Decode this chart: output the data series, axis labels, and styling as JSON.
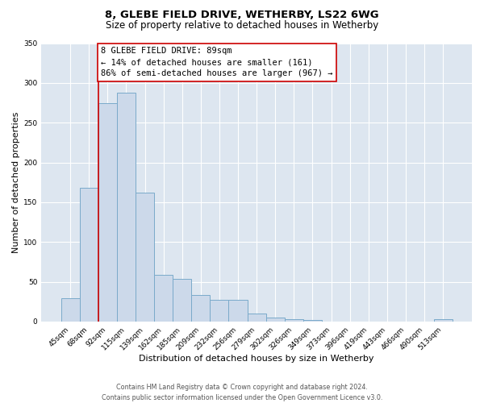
{
  "title": "8, GLEBE FIELD DRIVE, WETHERBY, LS22 6WG",
  "subtitle": "Size of property relative to detached houses in Wetherby",
  "xlabel": "Distribution of detached houses by size in Wetherby",
  "ylabel": "Number of detached properties",
  "bar_labels": [
    "45sqm",
    "68sqm",
    "92sqm",
    "115sqm",
    "139sqm",
    "162sqm",
    "185sqm",
    "209sqm",
    "232sqm",
    "256sqm",
    "279sqm",
    "302sqm",
    "326sqm",
    "349sqm",
    "373sqm",
    "396sqm",
    "419sqm",
    "443sqm",
    "466sqm",
    "490sqm",
    "513sqm"
  ],
  "bar_heights": [
    29,
    168,
    275,
    288,
    162,
    59,
    54,
    33,
    27,
    27,
    10,
    5,
    3,
    2,
    0,
    0,
    0,
    0,
    0,
    0,
    3
  ],
  "bar_color": "#ccd9ea",
  "bar_edgecolor": "#7aaaca",
  "bar_linewidth": 0.7,
  "vline_color": "#cc0000",
  "annotation_lines": [
    "8 GLEBE FIELD DRIVE: 89sqm",
    "← 14% of detached houses are smaller (161)",
    "86% of semi-detached houses are larger (967) →"
  ],
  "annotation_box_color": "#ffffff",
  "annotation_box_edgecolor": "#cc0000",
  "ylim": [
    0,
    350
  ],
  "yticks": [
    0,
    50,
    100,
    150,
    200,
    250,
    300,
    350
  ],
  "background_color": "#ffffff",
  "plot_background_color": "#dde6f0",
  "grid_color": "#ffffff",
  "footer_line1": "Contains HM Land Registry data © Crown copyright and database right 2024.",
  "footer_line2": "Contains public sector information licensed under the Open Government Licence v3.0.",
  "title_fontsize": 9.5,
  "subtitle_fontsize": 8.5,
  "xlabel_fontsize": 8,
  "ylabel_fontsize": 8,
  "tick_fontsize": 6.5,
  "annotation_fontsize": 7.5,
  "footer_fontsize": 5.8
}
